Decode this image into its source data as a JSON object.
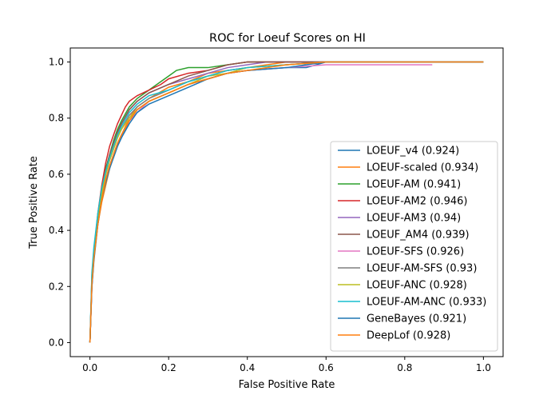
{
  "chart_data": {
    "type": "line",
    "title": "ROC for Loeuf Scores on HI",
    "xlabel": "False Positive Rate",
    "ylabel": "True Positive Rate",
    "xlim": [
      -0.05,
      1.05
    ],
    "ylim": [
      -0.05,
      1.05
    ],
    "xticks": [
      0.0,
      0.2,
      0.4,
      0.6,
      0.8,
      1.0
    ],
    "yticks": [
      0.0,
      0.2,
      0.4,
      0.6,
      0.8,
      1.0
    ],
    "xtick_labels": [
      "0.0",
      "0.2",
      "0.4",
      "0.6",
      "0.8",
      "1.0"
    ],
    "ytick_labels": [
      "0.0",
      "0.2",
      "0.4",
      "0.6",
      "0.8",
      "1.0"
    ],
    "grid": false,
    "legend_position": "lower-right",
    "series": [
      {
        "name": "LOEUF_v4 (0.924)",
        "color": "#1f77b4",
        "x": [
          0,
          0.005,
          0.01,
          0.02,
          0.03,
          0.04,
          0.05,
          0.06,
          0.07,
          0.08,
          0.09,
          0.1,
          0.12,
          0.15,
          0.2,
          0.25,
          0.3,
          0.35,
          0.4,
          0.5,
          0.55,
          0.6,
          1.0
        ],
        "y": [
          0,
          0.2,
          0.3,
          0.43,
          0.52,
          0.58,
          0.63,
          0.66,
          0.7,
          0.73,
          0.76,
          0.79,
          0.83,
          0.86,
          0.89,
          0.92,
          0.94,
          0.96,
          0.97,
          0.98,
          0.98,
          1.0,
          1.0
        ]
      },
      {
        "name": "LOEUF-scaled (0.934)",
        "color": "#ff7f0e",
        "x": [
          0,
          0.005,
          0.01,
          0.02,
          0.03,
          0.04,
          0.05,
          0.06,
          0.07,
          0.08,
          0.1,
          0.12,
          0.15,
          0.2,
          0.25,
          0.3,
          0.35,
          0.4,
          0.45,
          0.5,
          1.0
        ],
        "y": [
          0,
          0.22,
          0.3,
          0.42,
          0.5,
          0.56,
          0.62,
          0.67,
          0.71,
          0.74,
          0.8,
          0.84,
          0.87,
          0.91,
          0.93,
          0.96,
          0.97,
          0.98,
          0.99,
          1.0,
          1.0
        ]
      },
      {
        "name": "LOEUF-AM (0.941)",
        "color": "#2ca02c",
        "x": [
          0,
          0.005,
          0.01,
          0.02,
          0.03,
          0.04,
          0.05,
          0.06,
          0.07,
          0.08,
          0.1,
          0.12,
          0.15,
          0.18,
          0.2,
          0.22,
          0.25,
          0.3,
          0.35,
          0.4,
          0.6,
          1.0
        ],
        "y": [
          0,
          0.24,
          0.33,
          0.45,
          0.55,
          0.62,
          0.67,
          0.72,
          0.76,
          0.79,
          0.84,
          0.87,
          0.9,
          0.93,
          0.95,
          0.97,
          0.98,
          0.98,
          0.99,
          1.0,
          1.0,
          1.0
        ]
      },
      {
        "name": "LOEUF-AM2 (0.946)",
        "color": "#d62728",
        "x": [
          0,
          0.005,
          0.01,
          0.02,
          0.03,
          0.04,
          0.05,
          0.06,
          0.07,
          0.08,
          0.09,
          0.1,
          0.12,
          0.15,
          0.18,
          0.2,
          0.25,
          0.3,
          0.35,
          0.4,
          0.45,
          1.0
        ],
        "y": [
          0,
          0.22,
          0.32,
          0.46,
          0.56,
          0.64,
          0.7,
          0.74,
          0.78,
          0.81,
          0.84,
          0.86,
          0.88,
          0.9,
          0.92,
          0.94,
          0.96,
          0.97,
          0.99,
          1.0,
          1.0,
          1.0
        ]
      },
      {
        "name": "LOEUF-AM3 (0.94)",
        "color": "#9467bd",
        "x": [
          0,
          0.005,
          0.01,
          0.02,
          0.03,
          0.04,
          0.05,
          0.06,
          0.07,
          0.08,
          0.1,
          0.12,
          0.15,
          0.2,
          0.25,
          0.3,
          0.35,
          0.4,
          0.45,
          0.5,
          1.0
        ],
        "y": [
          0,
          0.23,
          0.32,
          0.45,
          0.54,
          0.61,
          0.66,
          0.71,
          0.75,
          0.78,
          0.83,
          0.86,
          0.89,
          0.92,
          0.94,
          0.96,
          0.98,
          0.99,
          1.0,
          1.0,
          1.0
        ]
      },
      {
        "name": "LOEUF_AM4 (0.939)",
        "color": "#8c564b",
        "x": [
          0,
          0.005,
          0.01,
          0.02,
          0.03,
          0.04,
          0.05,
          0.06,
          0.07,
          0.08,
          0.1,
          0.12,
          0.15,
          0.2,
          0.25,
          0.3,
          0.35,
          0.4,
          0.5,
          1.0
        ],
        "y": [
          0,
          0.22,
          0.31,
          0.44,
          0.54,
          0.61,
          0.67,
          0.71,
          0.75,
          0.78,
          0.83,
          0.86,
          0.89,
          0.92,
          0.95,
          0.97,
          0.99,
          1.0,
          1.0,
          1.0
        ]
      },
      {
        "name": "LOEUF-SFS (0.926)",
        "color": "#e377c2",
        "x": [
          0,
          0.005,
          0.01,
          0.02,
          0.03,
          0.04,
          0.05,
          0.06,
          0.07,
          0.08,
          0.1,
          0.12,
          0.15,
          0.2,
          0.25,
          0.3,
          0.35,
          0.4,
          0.5,
          0.6,
          0.7,
          0.8,
          0.87
        ],
        "y": [
          0,
          0.2,
          0.3,
          0.43,
          0.52,
          0.58,
          0.63,
          0.67,
          0.71,
          0.74,
          0.79,
          0.82,
          0.86,
          0.89,
          0.92,
          0.94,
          0.96,
          0.97,
          0.98,
          0.99,
          0.99,
          0.99,
          0.99
        ]
      },
      {
        "name": "LOEUF-AM-SFS (0.93)",
        "color": "#7f7f7f",
        "x": [
          0,
          0.005,
          0.01,
          0.02,
          0.03,
          0.04,
          0.05,
          0.06,
          0.07,
          0.08,
          0.1,
          0.12,
          0.15,
          0.2,
          0.25,
          0.3,
          0.35,
          0.4,
          0.5,
          0.6,
          1.0
        ],
        "y": [
          0,
          0.21,
          0.31,
          0.44,
          0.53,
          0.6,
          0.65,
          0.69,
          0.73,
          0.76,
          0.81,
          0.84,
          0.87,
          0.9,
          0.93,
          0.95,
          0.97,
          0.98,
          0.99,
          1.0,
          1.0
        ]
      },
      {
        "name": "LOEUF-ANC (0.928)",
        "color": "#bcbd22",
        "x": [
          0,
          0.005,
          0.01,
          0.02,
          0.03,
          0.04,
          0.05,
          0.06,
          0.07,
          0.08,
          0.1,
          0.12,
          0.15,
          0.2,
          0.25,
          0.3,
          0.35,
          0.4,
          0.5,
          0.6,
          1.0
        ],
        "y": [
          0,
          0.22,
          0.32,
          0.44,
          0.53,
          0.6,
          0.65,
          0.69,
          0.73,
          0.76,
          0.8,
          0.83,
          0.86,
          0.89,
          0.92,
          0.95,
          0.96,
          0.98,
          0.99,
          1.0,
          1.0
        ]
      },
      {
        "name": "LOEUF-AM-ANC (0.933)",
        "color": "#17becf",
        "x": [
          0,
          0.005,
          0.01,
          0.02,
          0.03,
          0.04,
          0.05,
          0.06,
          0.07,
          0.08,
          0.1,
          0.12,
          0.15,
          0.2,
          0.25,
          0.3,
          0.35,
          0.4,
          0.5,
          0.6,
          1.0
        ],
        "y": [
          0,
          0.25,
          0.34,
          0.46,
          0.55,
          0.61,
          0.66,
          0.7,
          0.74,
          0.77,
          0.82,
          0.85,
          0.88,
          0.9,
          0.93,
          0.95,
          0.97,
          0.98,
          0.99,
          1.0,
          1.0
        ]
      },
      {
        "name": "GeneBayes (0.921)",
        "color": "#1f77b4",
        "x": [
          0,
          0.005,
          0.01,
          0.02,
          0.03,
          0.04,
          0.05,
          0.06,
          0.07,
          0.08,
          0.1,
          0.12,
          0.15,
          0.2,
          0.25,
          0.3,
          0.35,
          0.4,
          0.5,
          0.55,
          0.6,
          1.0
        ],
        "y": [
          0,
          0.2,
          0.29,
          0.42,
          0.51,
          0.57,
          0.62,
          0.66,
          0.7,
          0.73,
          0.78,
          0.82,
          0.85,
          0.88,
          0.91,
          0.94,
          0.96,
          0.97,
          0.98,
          0.99,
          1.0,
          1.0
        ]
      },
      {
        "name": "DeepLof (0.928)",
        "color": "#ff7f0e",
        "x": [
          0,
          0.005,
          0.01,
          0.02,
          0.03,
          0.04,
          0.05,
          0.06,
          0.07,
          0.08,
          0.1,
          0.12,
          0.15,
          0.2,
          0.25,
          0.3,
          0.35,
          0.4,
          0.5,
          0.6,
          1.0
        ],
        "y": [
          0,
          0.21,
          0.3,
          0.42,
          0.51,
          0.58,
          0.63,
          0.67,
          0.71,
          0.74,
          0.79,
          0.83,
          0.86,
          0.89,
          0.92,
          0.94,
          0.96,
          0.97,
          0.99,
          1.0,
          1.0
        ]
      }
    ]
  }
}
